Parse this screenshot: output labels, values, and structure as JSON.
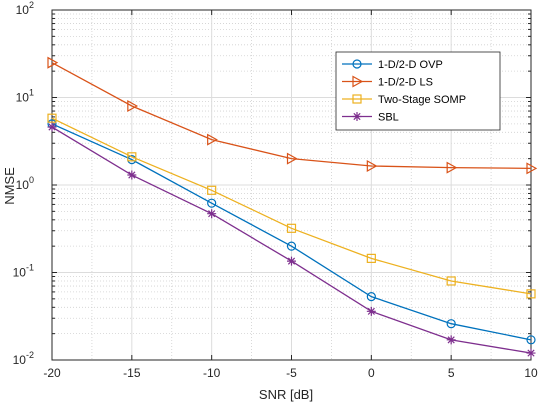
{
  "chart_data": {
    "type": "line",
    "title": "",
    "xlabel": "SNR [dB]",
    "ylabel": "NMSE",
    "x_scale": "linear",
    "y_scale": "log",
    "xlim": [
      -20,
      10
    ],
    "ylim": [
      0.01,
      100
    ],
    "x_ticks": [
      -20,
      -15,
      -10,
      -5,
      0,
      5,
      10
    ],
    "x_tick_labels": [
      "-20",
      "-15",
      "-10",
      "-5",
      "0",
      "5",
      "10"
    ],
    "y_ticks": [
      0.01,
      0.1,
      1,
      10,
      100
    ],
    "y_tick_labels": [
      {
        "base": "10",
        "exp": "-2"
      },
      {
        "base": "10",
        "exp": "-1"
      },
      {
        "base": "10",
        "exp": "0"
      },
      {
        "base": "10",
        "exp": "1"
      },
      {
        "base": "10",
        "exp": "2"
      }
    ],
    "grid": true,
    "minor_grid": true,
    "legend_position": "upper-right",
    "x": [
      -20,
      -15,
      -10,
      -5,
      0,
      5,
      10
    ],
    "series": [
      {
        "name": "1-D/2-D OVP",
        "color": "#0072BD",
        "marker": "circle",
        "values": [
          5.0,
          1.95,
          0.62,
          0.2,
          0.053,
          0.026,
          0.017
        ]
      },
      {
        "name": "1-D/2-D LS",
        "color": "#D95319",
        "marker": "triangle-right",
        "values": [
          25,
          8.0,
          3.3,
          2.0,
          1.65,
          1.58,
          1.55
        ]
      },
      {
        "name": "Two-Stage SOMP",
        "color": "#EDB120",
        "marker": "square",
        "values": [
          5.8,
          2.1,
          0.87,
          0.32,
          0.145,
          0.08,
          0.057
        ]
      },
      {
        "name": "SBL",
        "color": "#7E2F8E",
        "marker": "star",
        "values": [
          4.6,
          1.3,
          0.47,
          0.135,
          0.036,
          0.017,
          0.012
        ]
      }
    ]
  }
}
